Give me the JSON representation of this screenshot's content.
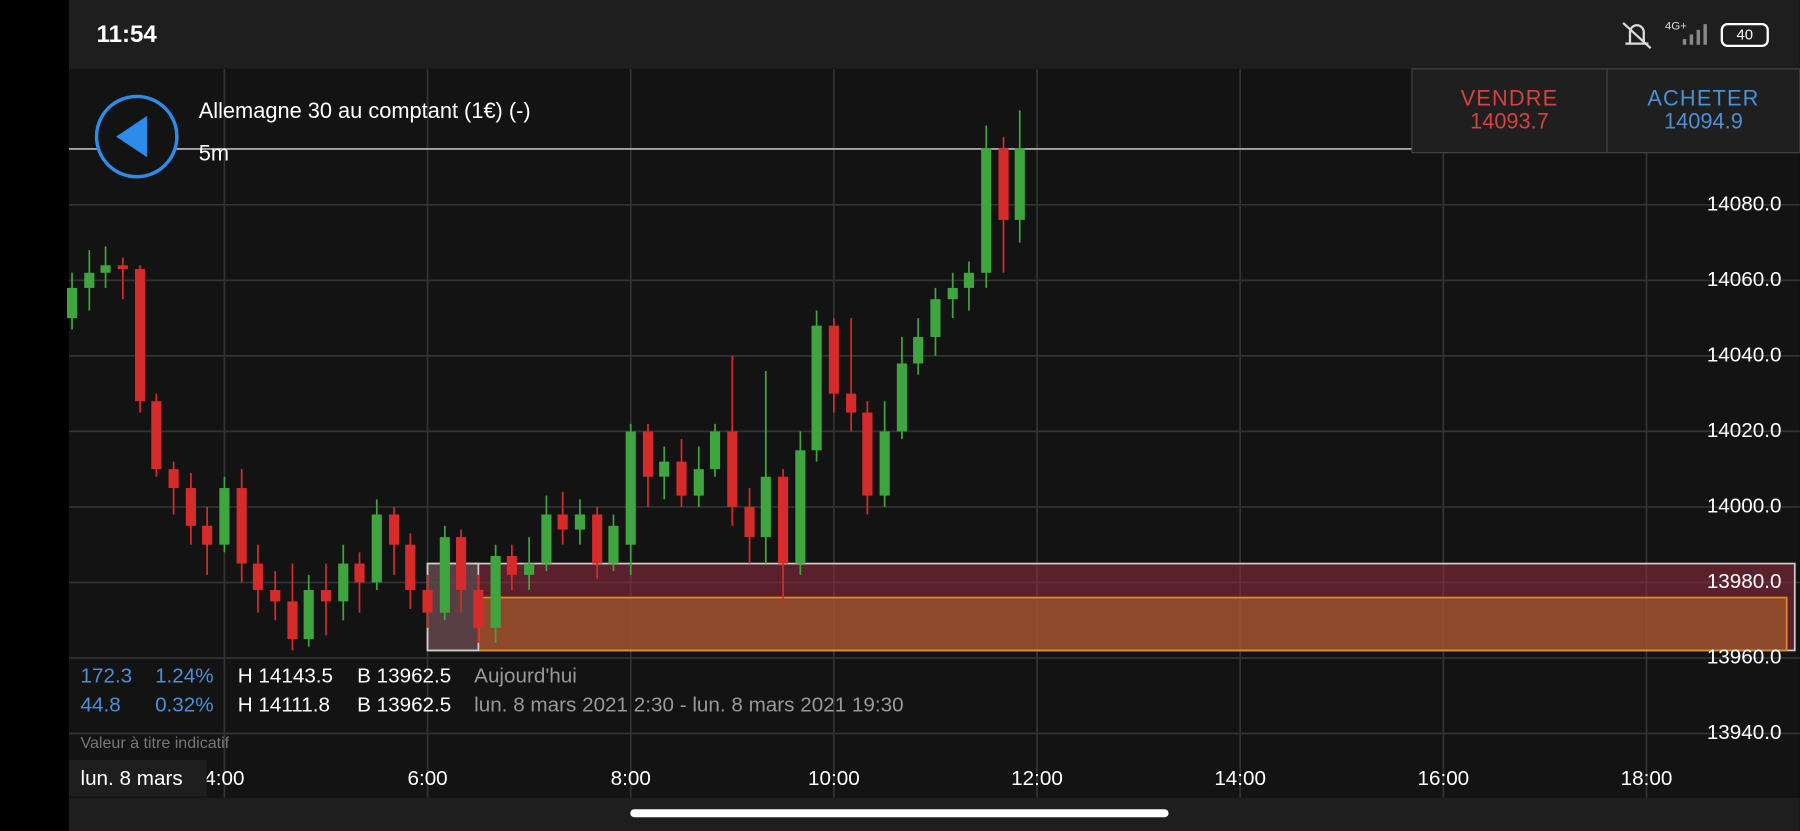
{
  "status_bar": {
    "time": "11:54",
    "network": "4G+",
    "battery": "40"
  },
  "header": {
    "title": "Allemagne 30 au comptant (1€) (-)",
    "interval": "5m"
  },
  "sell": {
    "label": "VENDRE",
    "price": "14093.7"
  },
  "buy": {
    "label": "ACHETER",
    "price": "14094.9"
  },
  "stats": {
    "rows": [
      [
        "172.3",
        "1.24%",
        "H 14143.5",
        "B 13962.5",
        "Aujourd'hui"
      ],
      [
        "44.8",
        "0.32%",
        "H 14111.8",
        "B 13962.5",
        "lun. 8 mars 2021 2:30 - lun. 8 mars 2021 19:30"
      ]
    ],
    "note": "Valeur à titre indicatif",
    "date_badge": "lun. 8 mars"
  },
  "chart_data": {
    "type": "candlestick",
    "x": [
      2.5,
      2.67,
      2.83,
      3,
      3.17,
      3.33,
      3.5,
      3.67,
      3.83,
      4,
      4.17,
      4.33,
      4.5,
      4.67,
      4.83,
      5,
      5.17,
      5.33,
      5.5,
      5.67,
      5.83,
      6,
      6.17,
      6.33,
      6.5,
      6.67,
      6.83,
      7,
      7.17,
      7.33,
      7.5,
      7.67,
      7.83,
      8,
      8.17,
      8.33,
      8.5,
      8.67,
      8.83,
      9,
      9.17,
      9.33,
      9.5,
      9.67,
      9.83,
      10,
      10.17,
      10.33,
      10.5,
      10.67,
      10.83,
      11,
      11.17,
      11.33,
      11.5,
      11.67,
      11.83
    ],
    "open": [
      14050,
      14058,
      14062,
      14064,
      14063,
      14028,
      14010,
      14005,
      13995,
      13990,
      14005,
      13985,
      13978,
      13975,
      13965,
      13978,
      13975,
      13985,
      13980,
      13998,
      13990,
      13978,
      13972,
      13992,
      13978,
      13968,
      13987,
      13982,
      13985,
      13998,
      13994,
      13998,
      13985,
      13990,
      14020,
      14008,
      14012,
      14003,
      14010,
      14020,
      14000,
      13992,
      14008,
      13985,
      14015,
      14048,
      14030,
      14025,
      14003,
      14020,
      14038,
      14045,
      14055,
      14058,
      14062,
      14095,
      14076
    ],
    "high": [
      14062,
      14068,
      14069,
      14066,
      14064,
      14030,
      14012,
      14009,
      14000,
      14008,
      14010,
      13990,
      13983,
      13985,
      13982,
      13985,
      13990,
      13988,
      14002,
      14000,
      13993,
      13982,
      13995,
      13994,
      13982,
      13990,
      13990,
      13992,
      14003,
      14004,
      14002,
      14000,
      13998,
      14022,
      14022,
      14016,
      14018,
      14016,
      14022,
      14040,
      14005,
      14036,
      14010,
      14020,
      14052,
      14050,
      14050,
      14028,
      14028,
      14045,
      14050,
      14058,
      14062,
      14065,
      14101,
      14098,
      14105
    ],
    "low": [
      14047,
      14052,
      14058,
      14055,
      14025,
      14008,
      13998,
      13990,
      13982,
      13988,
      13980,
      13972,
      13970,
      13962,
      13963,
      13966,
      13970,
      13972,
      13978,
      13982,
      13973,
      13968,
      13970,
      13972,
      13964,
      13964,
      13978,
      13978,
      13983,
      13990,
      13990,
      13981,
      13983,
      13982,
      14000,
      14002,
      14000,
      14000,
      14008,
      13995,
      13985,
      13985,
      13975,
      13982,
      14012,
      14025,
      14020,
      13998,
      14000,
      14018,
      14035,
      14040,
      14050,
      14052,
      14058,
      14062,
      14070
    ],
    "close": [
      14058,
      14062,
      14064,
      14063,
      14028,
      14010,
      14005,
      13995,
      13990,
      14005,
      13985,
      13978,
      13975,
      13965,
      13978,
      13975,
      13985,
      13980,
      13998,
      13990,
      13978,
      13972,
      13992,
      13978,
      13968,
      13987,
      13982,
      13985,
      13998,
      13994,
      13998,
      13985,
      13995,
      14020,
      14008,
      14012,
      14003,
      14010,
      14020,
      14000,
      13992,
      14008,
      13985,
      14015,
      14048,
      14030,
      14025,
      14003,
      14020,
      14038,
      14045,
      14055,
      14058,
      14062,
      14095,
      14076,
      14095
    ],
    "up_color": "#3fa53f",
    "down_color": "#d62b2b",
    "price_line": 14094.8,
    "zones": [
      {
        "x0": 6,
        "x1": 19.46,
        "low": 13962,
        "high": 13985,
        "color": "#8a2a3e"
      },
      {
        "x0": 6.5,
        "x1": 19.38,
        "low": 13962,
        "high": 13976,
        "color": "#b0652a"
      },
      {
        "x0": 6,
        "x1": 6.5,
        "low": 13962,
        "high": 13985,
        "color": "#555555"
      }
    ],
    "xlim": [
      2.47,
      19.51
    ],
    "ylim": [
      13923,
      14116
    ],
    "xticks": [
      {
        "value": 4,
        "label": "4:00"
      },
      {
        "value": 6,
        "label": "6:00"
      },
      {
        "value": 8,
        "label": "8:00"
      },
      {
        "value": 10,
        "label": "10:00"
      },
      {
        "value": 12,
        "label": "12:00"
      },
      {
        "value": 14,
        "label": "14:00"
      },
      {
        "value": 16,
        "label": "16:00"
      },
      {
        "value": 18,
        "label": "18:00"
      }
    ],
    "yticks": [
      {
        "value": 13940,
        "label": "13940.0"
      },
      {
        "value": 13960,
        "label": "13960.0"
      },
      {
        "value": 13980,
        "label": "13980.0"
      },
      {
        "value": 14000,
        "label": "14000.0"
      },
      {
        "value": 14020,
        "label": "14020.0"
      },
      {
        "value": 14040,
        "label": "14040.0"
      },
      {
        "value": 14060,
        "label": "14060.0"
      },
      {
        "value": 14080,
        "label": "14080.0"
      }
    ],
    "grid": true
  }
}
